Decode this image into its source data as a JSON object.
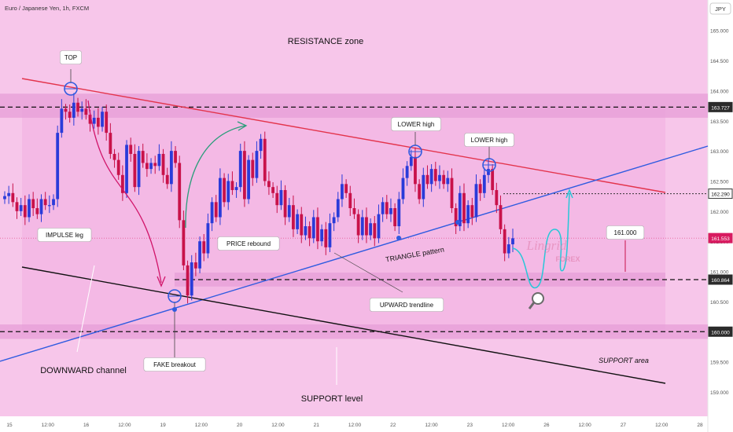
{
  "header": {
    "symbol": "Euro / Japanese Yen, 1h, FXCM",
    "currency_badge": "JPY"
  },
  "colors": {
    "background": "#f7c6ea",
    "zone": "#f2aee0",
    "bull": "#2a3bd9",
    "bear": "#c8124a",
    "resistance_line": "#e3344c",
    "trendline": "#2f5be0",
    "channel": "#111111",
    "projection": "#27c7d8"
  },
  "chart_data": {
    "type": "candlestick",
    "symbol": "EURJPY",
    "timeframe": "1h",
    "ylim": [
      158.7,
      165.4
    ],
    "y_ticks": [
      159.0,
      159.5,
      160.0,
      160.5,
      161.0,
      161.5,
      162.0,
      162.5,
      163.0,
      163.5,
      164.0,
      164.5,
      165.0
    ],
    "y_tick_labels": [
      "159.000",
      "159.500",
      "160.000",
      "160.500",
      "161.000",
      "161.500",
      "162.000",
      "162.500",
      "163.000",
      "163.500",
      "164.000",
      "164.500",
      "165.000"
    ],
    "x_tick_labels": [
      "15",
      "12:00",
      "16",
      "12:00",
      "19",
      "12:00",
      "20",
      "12:00",
      "21",
      "12:00",
      "22",
      "12:00",
      "23",
      "12:00",
      "26",
      "12:00",
      "27",
      "12:00",
      "28"
    ],
    "price_tags": [
      {
        "value": 163.727,
        "label": "163.727",
        "bg": "#2b2b2b"
      },
      {
        "value": 162.29,
        "label": "162.290",
        "bg": "#ffffff"
      },
      {
        "value": 161.553,
        "label": "161.553",
        "bg": "#d81b60"
      },
      {
        "value": 160.864,
        "label": "160.864",
        "bg": "#2b2b2b"
      },
      {
        "value": 160.0,
        "label": "160.000",
        "bg": "#2b2b2b"
      }
    ],
    "levels": {
      "resistance": 163.727,
      "support_top": 160.864,
      "support": 160.0,
      "target": 162.29,
      "label_161": "161.000"
    },
    "candles_close": [
      162.25,
      162.3,
      162.15,
      162.0,
      162.1,
      161.9,
      162.2,
      162.05,
      161.95,
      162.2,
      162.1,
      162.1,
      162.2,
      163.3,
      163.7,
      163.65,
      163.55,
      163.8,
      163.65,
      163.7,
      163.6,
      163.45,
      163.55,
      163.4,
      163.65,
      163.3,
      162.95,
      162.85,
      162.6,
      162.3,
      163.1,
      162.95,
      162.4,
      163.0,
      162.8,
      162.7,
      162.8,
      162.75,
      162.95,
      162.6,
      162.45,
      163.0,
      162.8,
      161.85,
      161.1,
      160.6,
      161.15,
      161.05,
      161.5,
      161.3,
      161.8,
      162.15,
      161.9,
      162.55,
      162.15,
      162.5,
      162.35,
      162.4,
      163.0,
      162.2,
      162.85,
      162.55,
      163.0,
      163.2,
      162.5,
      162.4,
      162.3,
      162.1,
      162.35,
      161.9,
      162.1,
      161.7,
      161.95,
      161.6,
      161.75,
      161.55,
      161.9,
      161.5,
      161.7,
      161.4,
      161.8,
      161.9,
      162.2,
      162.45,
      162.3,
      162.05,
      161.95,
      161.6,
      161.9,
      161.6,
      161.8,
      161.55,
      161.95,
      162.15,
      161.95,
      162.05,
      161.75,
      162.2,
      162.55,
      162.75,
      162.9,
      162.45,
      162.2,
      162.6,
      162.45,
      162.7,
      162.5,
      162.6,
      162.45,
      162.55,
      162.05,
      161.75,
      162.3,
      161.8,
      162.1,
      161.9,
      162.45,
      162.3,
      162.6,
      162.7,
      162.35,
      162.1,
      161.7,
      161.3,
      161.45,
      161.55
    ],
    "annotations": {
      "resistance_zone": "RESISTANCE zone",
      "top": "TOP",
      "lower_high_1": "LOWER high",
      "lower_high_2": "LOWER high",
      "impulse_leg": "IMPULSE leg",
      "price_rebound": "PRICE rebound",
      "triangle_pattern": "TRIANGLE pattern",
      "upward_trendline": "UPWARD trendline",
      "fake_breakout": "FAKE breakout",
      "downward_channel": "DOWNWARD channel",
      "support_level": "SUPPORT level",
      "support_area": "SUPPORT area",
      "target_value": "161.000"
    },
    "watermark": {
      "name": "Lingrid",
      "sub": "FOREX"
    }
  }
}
